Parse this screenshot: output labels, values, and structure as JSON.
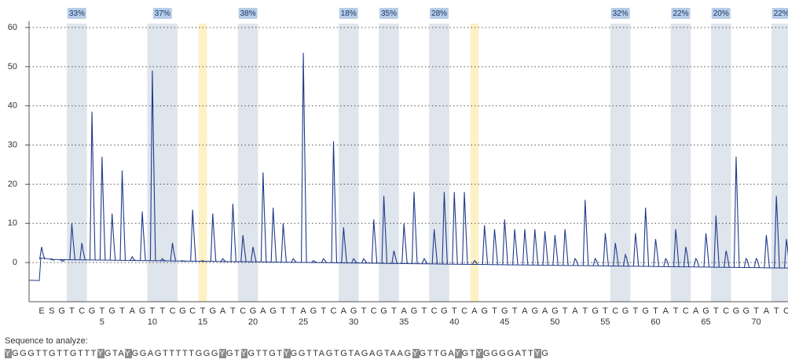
{
  "chart_data": {
    "type": "pyrogram",
    "categories": [
      "E",
      "S",
      "G",
      "T",
      "C",
      "G",
      "T",
      "G",
      "T",
      "A",
      "G",
      "T",
      "T",
      "C",
      "G",
      "C",
      "T",
      "G",
      "A",
      "T",
      "C",
      "G",
      "A",
      "G",
      "T",
      "T",
      "A",
      "G",
      "T",
      "C",
      "A",
      "G",
      "T",
      "C",
      "G",
      "T",
      "A",
      "G",
      "T",
      "C",
      "G",
      "T",
      "C",
      "A",
      "G",
      "T",
      "G",
      "T",
      "A",
      "G",
      "A",
      "G",
      "T",
      "A",
      "T",
      "G",
      "T",
      "C",
      "G",
      "T",
      "G",
      "T",
      "A",
      "T",
      "C",
      "A",
      "G",
      "T",
      "C",
      "G",
      "G",
      "T",
      "A",
      "T",
      "C"
    ],
    "values": [
      4,
      1,
      0.5,
      10,
      5,
      38.5,
      27,
      12.5,
      23.5,
      1.5,
      13,
      49,
      1,
      5,
      0.5,
      13.5,
      0.5,
      12.5,
      1,
      15,
      7,
      4,
      23,
      14,
      10,
      1,
      53.5,
      0.5,
      1,
      31,
      9,
      1,
      1,
      11,
      17,
      3,
      10,
      18,
      1,
      8.5,
      18,
      18,
      18,
      0.5,
      9.5,
      8.5,
      11,
      8.5,
      8.5,
      8.5,
      8,
      7,
      8.5,
      1,
      16,
      1,
      7.5,
      5,
      2,
      7.5,
      14,
      6,
      1,
      8.5,
      4,
      1,
      7.5,
      12,
      3,
      27,
      1,
      1,
      7,
      17,
      6
    ],
    "dispensation_ticks": [
      5,
      10,
      15,
      20,
      25,
      30,
      35,
      40,
      45,
      50,
      55,
      60,
      65,
      70
    ],
    "regions": [
      {
        "value": 33,
        "label": "33%",
        "start": 2,
        "end": 3
      },
      {
        "value": 37,
        "label": "37%",
        "start": 10,
        "end": 12
      },
      {
        "value": 38,
        "label": "38%",
        "start": 19,
        "end": 20
      },
      {
        "value": 18,
        "label": "18%",
        "start": 29,
        "end": 30
      },
      {
        "value": 35,
        "label": "35%",
        "start": 33,
        "end": 34
      },
      {
        "value": 28,
        "label": "28%",
        "start": 38,
        "end": 39
      },
      {
        "value": 32,
        "label": "32%",
        "start": 56,
        "end": 57
      },
      {
        "value": 22,
        "label": "22%",
        "start": 62,
        "end": 63
      },
      {
        "value": 20,
        "label": "20%",
        "start": 66,
        "end": 67
      },
      {
        "value": 22,
        "label": "22%",
        "start": 72,
        "end": 73
      }
    ],
    "controls": [
      15,
      42
    ],
    "color": "#1f3a8a",
    "region_color": "#dfe5ec",
    "control_color": "#fcf2c6",
    "label_color": "#b7cde6",
    "ylim": [
      -10,
      60
    ],
    "yticks": [
      0,
      10,
      20,
      30,
      40,
      50,
      60
    ],
    "grid": true
  },
  "sequence": {
    "title": "Sequence to analyze:",
    "segments": [
      {
        "text": "Y",
        "highlight": true
      },
      {
        "text": "GGGTTGTTGTTT",
        "highlight": false
      },
      {
        "text": "Y",
        "highlight": true
      },
      {
        "text": "GTA",
        "highlight": false
      },
      {
        "text": "Y",
        "highlight": true
      },
      {
        "text": "GGAGTTTTTGGG",
        "highlight": false
      },
      {
        "text": "Y",
        "highlight": true
      },
      {
        "text": "GT",
        "highlight": false
      },
      {
        "text": "Y",
        "highlight": true
      },
      {
        "text": "GTTGT",
        "highlight": false
      },
      {
        "text": "Y",
        "highlight": true
      },
      {
        "text": "GGTTAGTGTAGAGTAAG",
        "highlight": false
      },
      {
        "text": "Y",
        "highlight": true
      },
      {
        "text": "GTTGA",
        "highlight": false
      },
      {
        "text": "Y",
        "highlight": true
      },
      {
        "text": "GT",
        "highlight": false
      },
      {
        "text": "Y",
        "highlight": true
      },
      {
        "text": "GGGGATT",
        "highlight": false
      },
      {
        "text": "Y",
        "highlight": true
      },
      {
        "text": "G",
        "highlight": false
      }
    ]
  }
}
